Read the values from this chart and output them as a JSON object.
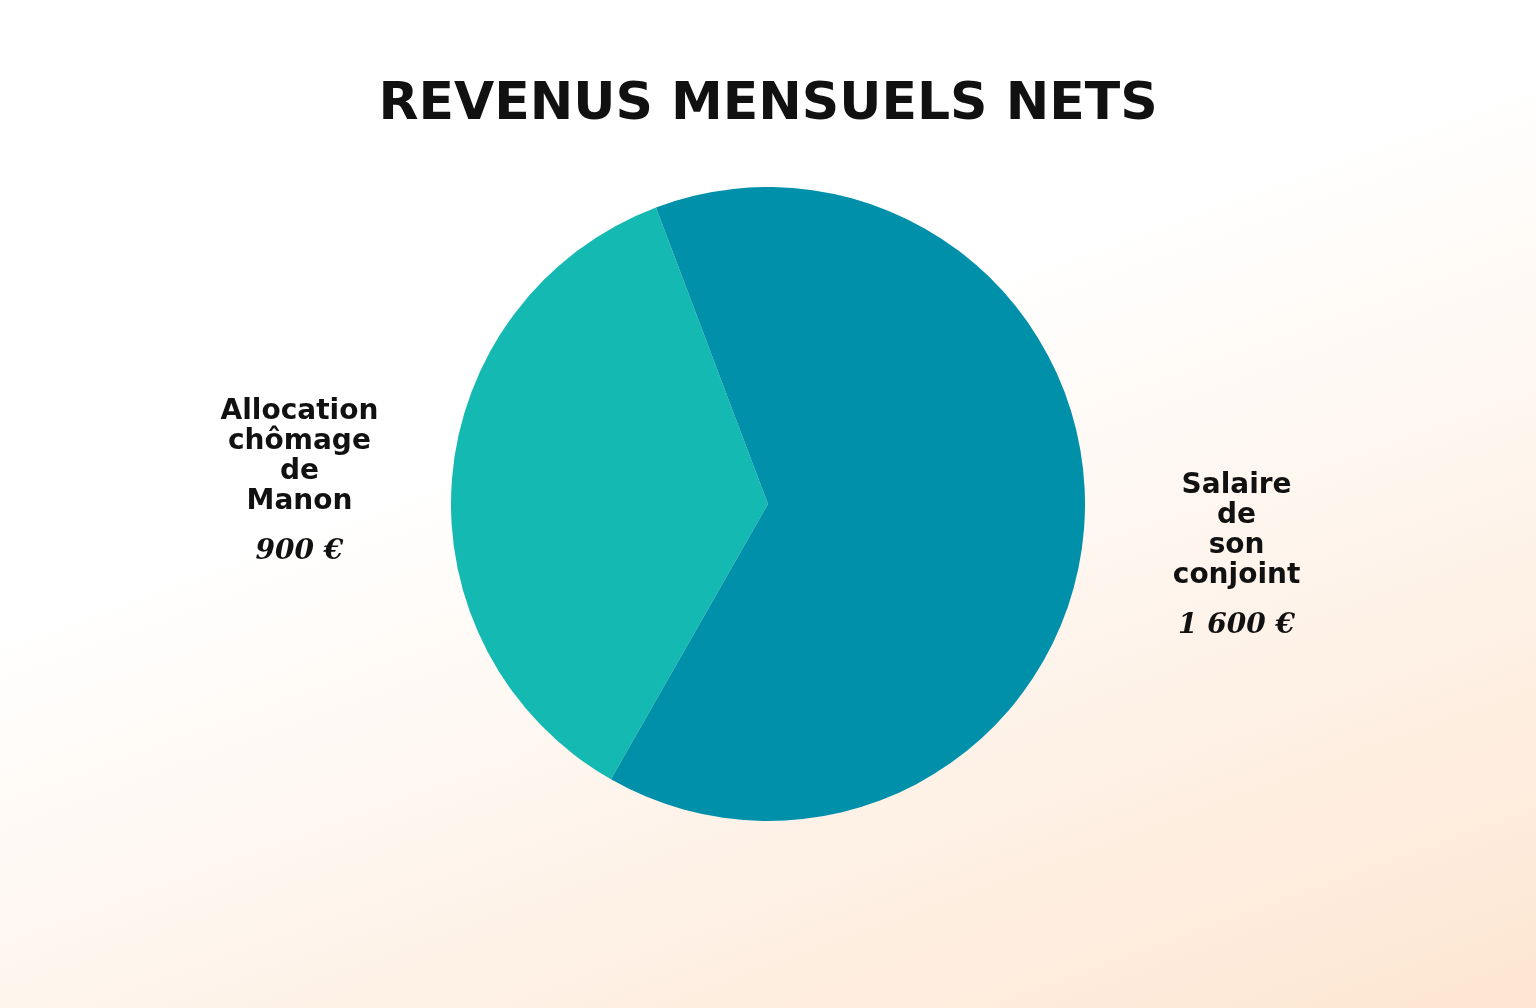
{
  "chart_data": {
    "type": "pie",
    "title": "REVENUS MENSUELS NETS",
    "categories": [
      "Allocation chômage de Manon",
      "Salaire de son conjoint"
    ],
    "values": [
      900,
      1600
    ],
    "colors": [
      "#14b9b1",
      "#0090aa"
    ],
    "value_labels": [
      "900 €",
      "1 600 €"
    ],
    "legend": false
  }
}
